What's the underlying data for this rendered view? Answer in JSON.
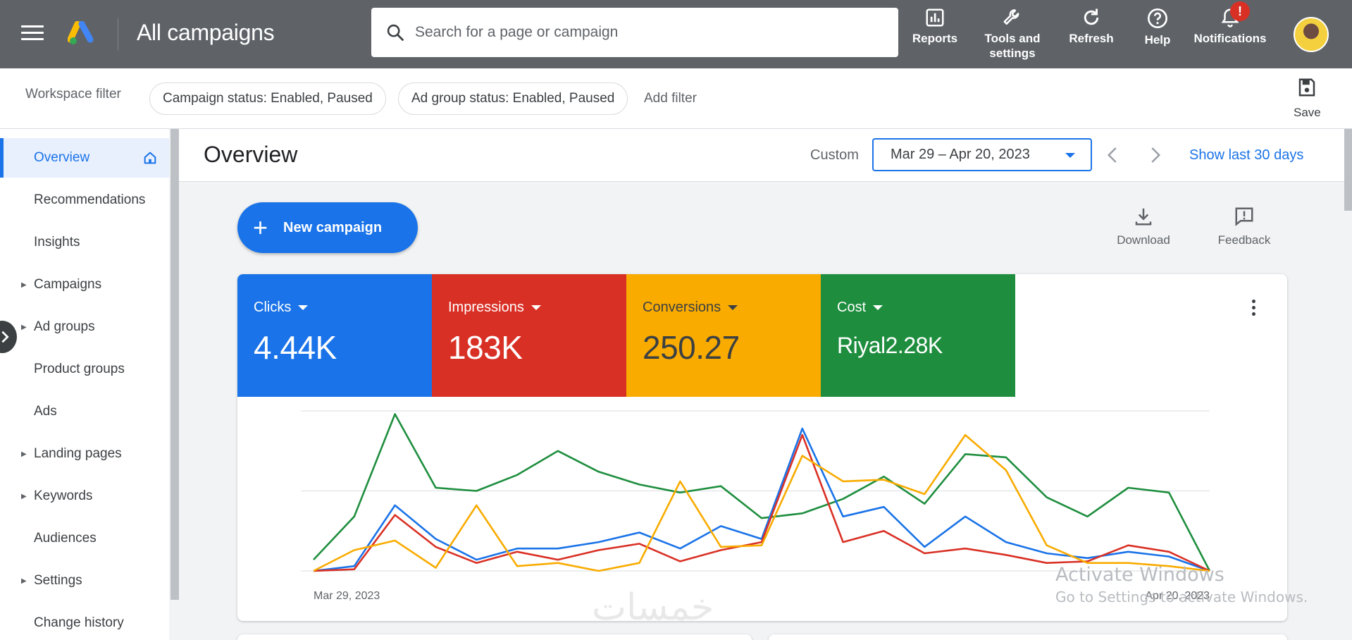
{
  "topbar": {
    "title": "All campaigns",
    "search_placeholder": "Search for a page or campaign",
    "actions": {
      "reports": "Reports",
      "tools_line1": "Tools and",
      "tools_line2": "settings",
      "refresh": "Refresh",
      "help": "Help",
      "notifications": "Notifications",
      "notifications_badge": "!"
    }
  },
  "filterbar": {
    "workspace_label": "Workspace filter",
    "chips": [
      "Campaign status: Enabled, Paused",
      "Ad group status: Enabled, Paused"
    ],
    "add_filter": "Add filter",
    "save": "Save"
  },
  "sidebar": {
    "items": [
      {
        "label": "Overview",
        "active": true
      },
      {
        "label": "Recommendations"
      },
      {
        "label": "Insights"
      },
      {
        "label": "Campaigns",
        "expandable": true
      },
      {
        "label": "Ad groups",
        "expandable": true
      },
      {
        "label": "Product groups"
      },
      {
        "label": "Ads"
      },
      {
        "label": "Landing pages",
        "expandable": true
      },
      {
        "label": "Keywords",
        "expandable": true
      },
      {
        "label": "Audiences"
      },
      {
        "label": "Settings",
        "expandable": true
      },
      {
        "label": "Change history"
      }
    ]
  },
  "overview": {
    "title": "Overview",
    "custom_label": "Custom",
    "date_range": "Mar 29 – Apr 20, 2023",
    "show_last": "Show last 30 days",
    "new_campaign": "New campaign",
    "download": "Download",
    "feedback": "Feedback"
  },
  "metrics": [
    {
      "label": "Clicks",
      "value": "4.44K",
      "color": "#1a73e8"
    },
    {
      "label": "Impressions",
      "value": "183K",
      "color": "#d93025"
    },
    {
      "label": "Conversions",
      "value": "250.27",
      "color": "#f9ab00"
    },
    {
      "label": "Cost",
      "value": "Riyal2.28K",
      "color": "#1e8e3e"
    }
  ],
  "chart_data": {
    "type": "line",
    "x_start_label": "Mar 29, 2023",
    "x_end_label": "Apr 20, 2023",
    "grid": true,
    "series": [
      {
        "name": "Cost",
        "color": "#1e8e3e",
        "values": [
          7,
          34,
          98,
          52,
          50,
          60,
          75,
          62,
          54,
          49,
          53,
          33,
          36,
          45,
          59,
          42,
          73,
          71,
          46,
          34,
          52,
          49,
          0
        ]
      },
      {
        "name": "Clicks",
        "color": "#1a73e8",
        "values": [
          0,
          3,
          41,
          20,
          7,
          14,
          14,
          18,
          24,
          14,
          28,
          20,
          89,
          34,
          40,
          15,
          34,
          18,
          11,
          8,
          12,
          9,
          0
        ]
      },
      {
        "name": "Impressions",
        "color": "#d93025",
        "values": [
          0,
          1,
          35,
          15,
          5,
          12,
          7,
          13,
          17,
          6,
          13,
          18,
          85,
          18,
          25,
          11,
          14,
          10,
          5,
          6,
          16,
          12,
          0
        ]
      },
      {
        "name": "Conversions",
        "color": "#f9ab00",
        "values": [
          0,
          13,
          19,
          2,
          41,
          3,
          5,
          0,
          5,
          56,
          15,
          16,
          72,
          56,
          57,
          48,
          85,
          63,
          16,
          5,
          5,
          3,
          0
        ]
      }
    ]
  },
  "watermark": {
    "line1": "Activate Windows",
    "line2": "Go to Settings to activate Windows.",
    "arabic": "خمسات"
  }
}
